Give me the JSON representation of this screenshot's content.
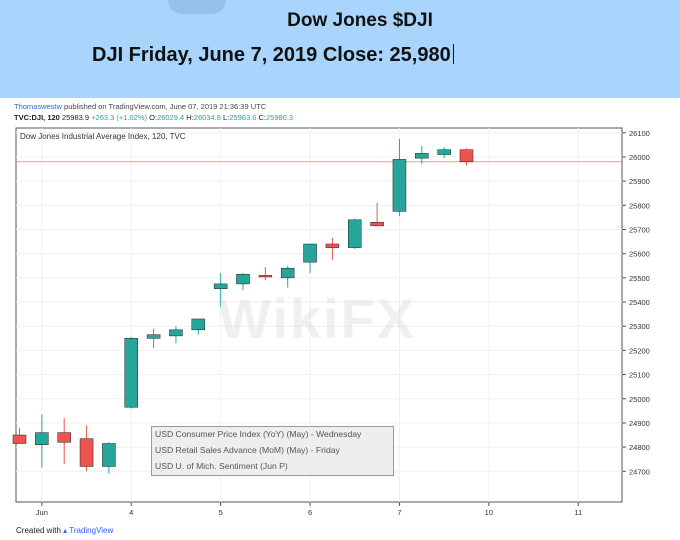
{
  "banner": {
    "title": "Dow Jones $DJI",
    "subtitle": "DJI Friday, June 7, 2019 Close: 25,980"
  },
  "tv": {
    "user": "Thomaswestw",
    "published": "published on TradingView.com, June 07, 2019 21:36:39 UTC",
    "symbol": "TVC:DJI, 120",
    "last": "25983.9",
    "change": "+263.3 (+1.02%)",
    "o_label": "O:",
    "o": "26029.4",
    "h_label": "H:",
    "h": "26034.8",
    "l_label": "L:",
    "l": "25963.6",
    "c_label": "C:",
    "c": "25980.3"
  },
  "footer": {
    "prefix": "Created with",
    "brand": "TradingView"
  },
  "watermark": "WikiFX",
  "legend": [
    "USD Consumer Price Index (YoY) (May) - Wednesday",
    "USD Retail Sales Advance (MoM) (May) - Friday",
    "USD U. of Mich. Sentiment (Jun P)"
  ],
  "colors": {
    "up": "#26a69a",
    "down": "#ef5350",
    "banner": "#a9d4fb",
    "price_line": "#ef9a9a"
  },
  "chart_data": {
    "type": "candlestick",
    "title": "Dow Jones Industrial Average Index, 120, TVC",
    "ylim": [
      24620,
      26150
    ],
    "y_ticks": [
      24700,
      24800,
      24900,
      25000,
      25100,
      25200,
      25300,
      25400,
      25500,
      25600,
      25700,
      25800,
      25900,
      26000,
      26100
    ],
    "x_ticks": [
      {
        "label": "Jun",
        "pos": 1
      },
      {
        "label": "4",
        "pos": 5
      },
      {
        "label": "5",
        "pos": 9
      },
      {
        "label": "6",
        "pos": 13
      },
      {
        "label": "7",
        "pos": 17
      },
      {
        "label": "10",
        "pos": 21
      },
      {
        "label": "11",
        "pos": 25
      }
    ],
    "close_price": 25980,
    "candles": [
      {
        "x": 0,
        "o": 24850,
        "h": 24880,
        "l": 24815,
        "c": 24815
      },
      {
        "x": 1,
        "o": 24810,
        "h": 24935,
        "l": 24715,
        "c": 24860
      },
      {
        "x": 2,
        "o": 24860,
        "h": 24920,
        "l": 24730,
        "c": 24820
      },
      {
        "x": 3,
        "o": 24835,
        "h": 24890,
        "l": 24700,
        "c": 24720
      },
      {
        "x": 4,
        "o": 24720,
        "h": 24820,
        "l": 24690,
        "c": 24815
      },
      {
        "x": 5,
        "o": 24965,
        "h": 25255,
        "l": 24960,
        "c": 25250
      },
      {
        "x": 6,
        "o": 25250,
        "h": 25290,
        "l": 25210,
        "c": 25265
      },
      {
        "x": 7,
        "o": 25260,
        "h": 25300,
        "l": 25230,
        "c": 25285
      },
      {
        "x": 8,
        "o": 25285,
        "h": 25330,
        "l": 25265,
        "c": 25330
      },
      {
        "x": 9,
        "o": 25455,
        "h": 25520,
        "l": 25380,
        "c": 25475
      },
      {
        "x": 10,
        "o": 25475,
        "h": 25520,
        "l": 25450,
        "c": 25515
      },
      {
        "x": 11,
        "o": 25510,
        "h": 25545,
        "l": 25490,
        "c": 25505
      },
      {
        "x": 12,
        "o": 25500,
        "h": 25550,
        "l": 25460,
        "c": 25540
      },
      {
        "x": 13,
        "o": 25565,
        "h": 25640,
        "l": 25520,
        "c": 25640
      },
      {
        "x": 14,
        "o": 25640,
        "h": 25665,
        "l": 25575,
        "c": 25625
      },
      {
        "x": 15,
        "o": 25625,
        "h": 25745,
        "l": 25620,
        "c": 25740
      },
      {
        "x": 16,
        "o": 25730,
        "h": 25810,
        "l": 25715,
        "c": 25715
      },
      {
        "x": 17,
        "o": 25775,
        "h": 26075,
        "l": 25755,
        "c": 25990
      },
      {
        "x": 18,
        "o": 25995,
        "h": 26045,
        "l": 25970,
        "c": 26015
      },
      {
        "x": 19,
        "o": 26010,
        "h": 26040,
        "l": 25995,
        "c": 26030
      },
      {
        "x": 20,
        "o": 26030,
        "h": 26035,
        "l": 25965,
        "c": 25980
      }
    ]
  }
}
